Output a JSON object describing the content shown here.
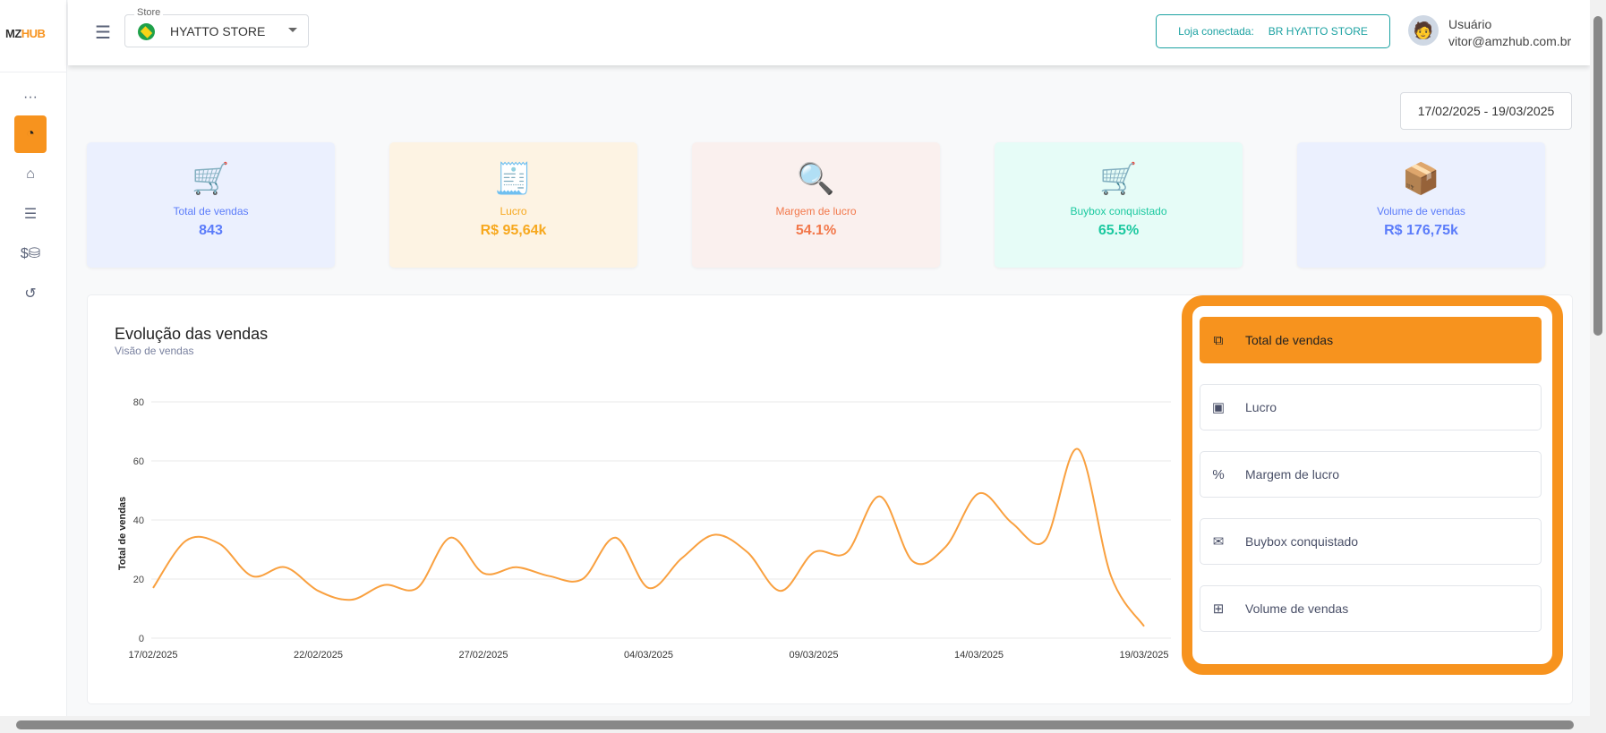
{
  "brand": {
    "logo_left": "MZ",
    "logo_right": "HUB"
  },
  "sidebar": {
    "items": [
      {
        "icon": "more-icon",
        "glyph": "···"
      },
      {
        "icon": "dashboard-icon",
        "glyph": "◔",
        "active": true
      },
      {
        "icon": "store-icon",
        "glyph": "⌂"
      },
      {
        "icon": "list-icon",
        "glyph": "☰"
      },
      {
        "icon": "coins-icon",
        "glyph": "$⛁"
      },
      {
        "icon": "history-icon",
        "glyph": "↺"
      }
    ]
  },
  "topbar": {
    "store_label": "Store",
    "store_name": "HYATTO STORE",
    "connected_label": "Loja conectada:",
    "connected_value": "BR HYATTO STORE",
    "user_name": "Usuário",
    "user_email": "vitor@amzhub.com.br"
  },
  "date_range": "17/02/2025 - 19/03/2025",
  "cards": [
    {
      "label": "Total de vendas",
      "value": "843",
      "color": "#5b7cfa",
      "bg": "#ebf0fe",
      "icon": "cart-icon",
      "glyph": "🛒"
    },
    {
      "label": "Lucro",
      "value": "R$ 95,64k",
      "color": "#f7a81e",
      "bg": "#fdf3e3",
      "icon": "cash-register-icon",
      "glyph": "🧾"
    },
    {
      "label": "Margem de lucro",
      "value": "54.1%",
      "color": "#f2784b",
      "bg": "#faf0ee",
      "icon": "percent-search-icon",
      "glyph": "🔍"
    },
    {
      "label": "Buybox conquistado",
      "value": "65.5%",
      "color": "#1cc9a0",
      "bg": "#e6fcf7",
      "icon": "buybox-cart-icon",
      "glyph": "🛒"
    },
    {
      "label": "Volume de vendas",
      "value": "R$ 176,75k",
      "color": "#5b7cfa",
      "bg": "#ebf0fe",
      "icon": "hand-truck-icon",
      "glyph": "📦"
    }
  ],
  "panel": {
    "title": "Evolução das vendas",
    "subtitle": "Visão de vendas"
  },
  "options": [
    {
      "label": "Total de vendas",
      "icon": "boxes-icon",
      "glyph": "⧉",
      "active": true
    },
    {
      "label": "Lucro",
      "icon": "money-icon",
      "glyph": "▣"
    },
    {
      "label": "Margem de lucro",
      "icon": "percent-cycle-icon",
      "glyph": "%"
    },
    {
      "label": "Buybox conquistado",
      "icon": "box-open-icon",
      "glyph": "✉"
    },
    {
      "label": "Volume de vendas",
      "icon": "dolly-icon",
      "glyph": "⊞"
    }
  ],
  "chart_data": {
    "type": "line",
    "ylabel": "Total de vendas",
    "ylim": [
      0,
      80
    ],
    "yticks": [
      0,
      20,
      40,
      60,
      80
    ],
    "grid": true,
    "color": "#f9a03f",
    "x_tick_labels": [
      "17/02/2025",
      "22/02/2025",
      "27/02/2025",
      "04/03/2025",
      "09/03/2025",
      "14/03/2025",
      "19/03/2025"
    ],
    "x": [
      "17/02",
      "18/02",
      "19/02",
      "20/02",
      "21/02",
      "22/02",
      "23/02",
      "24/02",
      "25/02",
      "26/02",
      "27/02",
      "28/02",
      "01/03",
      "02/03",
      "03/03",
      "04/03",
      "05/03",
      "06/03",
      "07/03",
      "08/03",
      "09/03",
      "10/03",
      "11/03",
      "12/03",
      "13/03",
      "14/03",
      "15/03",
      "16/03",
      "17/03",
      "18/03",
      "19/03"
    ],
    "values": [
      17,
      33,
      32,
      21,
      24,
      16,
      13,
      18,
      17,
      34,
      22,
      24,
      21,
      20,
      34,
      17,
      27,
      35,
      29,
      16,
      29,
      29,
      48,
      26,
      31,
      49,
      39,
      33,
      64,
      21,
      4
    ]
  }
}
